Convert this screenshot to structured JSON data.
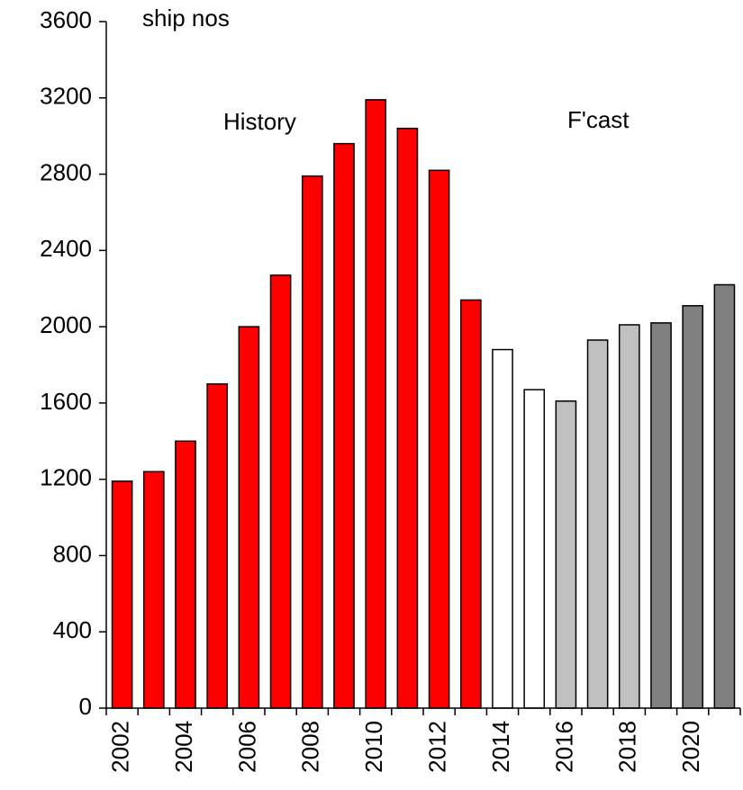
{
  "chart_data": {
    "type": "bar",
    "annotations": [
      "ship nos",
      "History",
      "F'cast"
    ],
    "categories": [
      "2002",
      null,
      "2004",
      null,
      "2006",
      null,
      "2008",
      null,
      "2010",
      null,
      "2012",
      null,
      "2014",
      null,
      "2016",
      null,
      "2018",
      null,
      "2020",
      null
    ],
    "values": [
      1190,
      1240,
      1400,
      1700,
      2000,
      2270,
      2790,
      2960,
      3190,
      3040,
      2820,
      2140,
      1880,
      1670,
      1610,
      1930,
      2010,
      2020,
      2110,
      2220
    ],
    "colors": [
      "#ff0000",
      "#ff0000",
      "#ff0000",
      "#ff0000",
      "#ff0000",
      "#ff0000",
      "#ff0000",
      "#ff0000",
      "#ff0000",
      "#ff0000",
      "#ff0000",
      "#ff0000",
      "#ffffff",
      "#ffffff",
      "#c0c0c0",
      "#c0c0c0",
      "#c0c0c0",
      "#808080",
      "#808080",
      "#808080"
    ],
    "ylim": [
      0,
      3600
    ],
    "yticks": [
      0,
      400,
      800,
      1200,
      1600,
      2000,
      2400,
      2800,
      3200,
      3600
    ],
    "grid": false
  }
}
